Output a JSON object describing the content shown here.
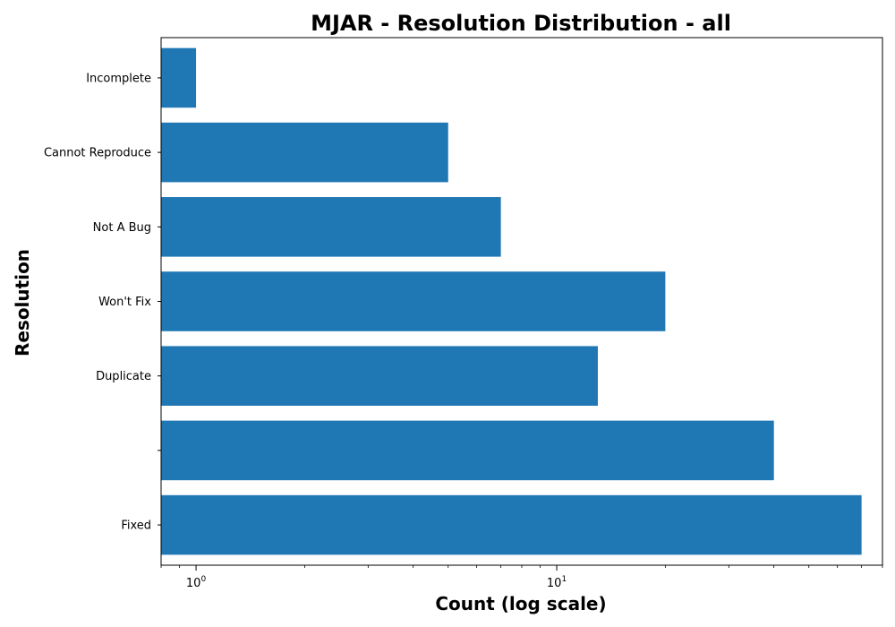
{
  "chart_data": {
    "type": "bar",
    "orientation": "horizontal",
    "title": "MJAR - Resolution Distribution - all",
    "xlabel": "Count (log scale)",
    "ylabel": "Resolution",
    "x_scale": "log",
    "xlim": [
      0.8,
      80
    ],
    "x_ticks": [
      {
        "value": 1,
        "base": "10",
        "exp": "0"
      },
      {
        "value": 10,
        "base": "10",
        "exp": "1"
      }
    ],
    "categories": [
      "Fixed",
      "",
      "Duplicate",
      "Won't Fix",
      "Not A Bug",
      "Cannot Reproduce",
      "Incomplete"
    ],
    "values": [
      70,
      40,
      13,
      20,
      7,
      5,
      1
    ],
    "color": "#1f77b4",
    "grid": false,
    "legend": "none"
  }
}
